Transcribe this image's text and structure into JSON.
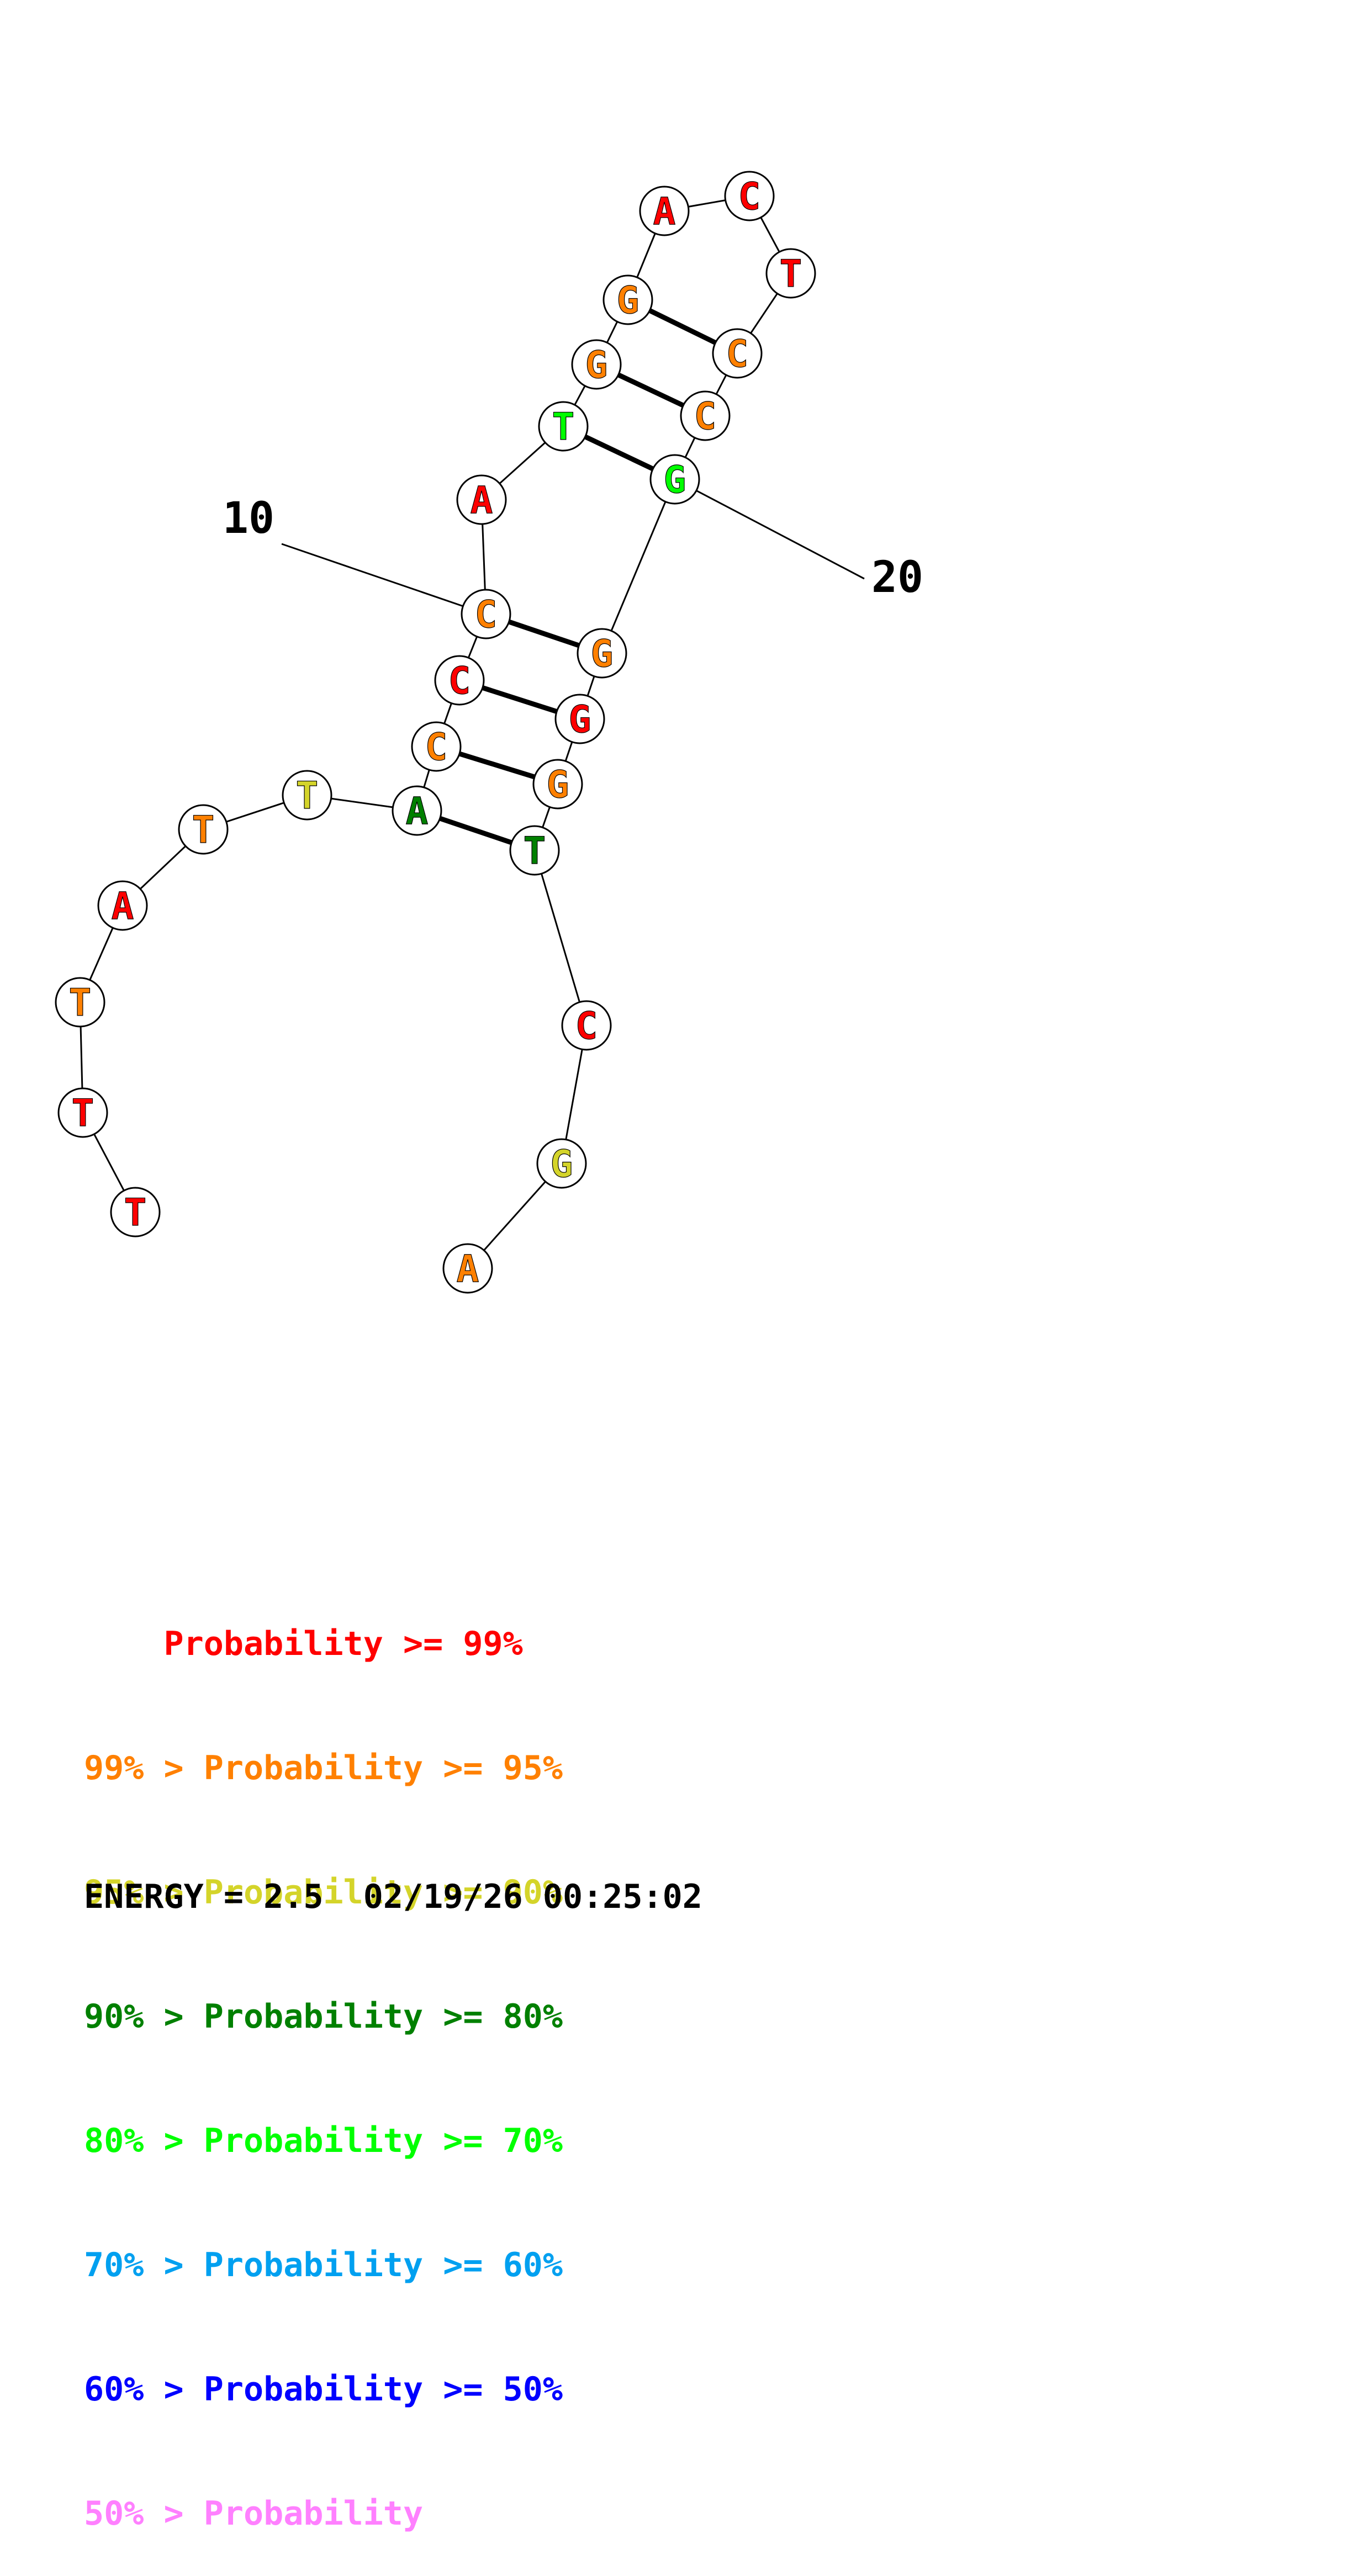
{
  "nucleotides": [
    {
      "idx": 1,
      "base": "T",
      "color": "#ff0000"
    },
    {
      "idx": 2,
      "base": "T",
      "color": "#ff0000"
    },
    {
      "idx": 3,
      "base": "T",
      "color": "#ff8000"
    },
    {
      "idx": 4,
      "base": "A",
      "color": "#ff0000"
    },
    {
      "idx": 5,
      "base": "T",
      "color": "#ff8000"
    },
    {
      "idx": 6,
      "base": "T",
      "color": "#d4d42a"
    },
    {
      "idx": 7,
      "base": "A",
      "color": "#008000"
    },
    {
      "idx": 8,
      "base": "C",
      "color": "#ff8000"
    },
    {
      "idx": 9,
      "base": "C",
      "color": "#ff0000"
    },
    {
      "idx": 10,
      "base": "C",
      "color": "#ff8000"
    },
    {
      "idx": 11,
      "base": "A",
      "color": "#ff0000"
    },
    {
      "idx": 12,
      "base": "T",
      "color": "#00ff00"
    },
    {
      "idx": 13,
      "base": "G",
      "color": "#ff8000"
    },
    {
      "idx": 14,
      "base": "G",
      "color": "#ff8000"
    },
    {
      "idx": 15,
      "base": "A",
      "color": "#ff0000"
    },
    {
      "idx": 16,
      "base": "C",
      "color": "#ff0000"
    },
    {
      "idx": 17,
      "base": "T",
      "color": "#ff0000"
    },
    {
      "idx": 18,
      "base": "C",
      "color": "#ff8000"
    },
    {
      "idx": 19,
      "base": "C",
      "color": "#ff8000"
    },
    {
      "idx": 20,
      "base": "G",
      "color": "#00ff00"
    },
    {
      "idx": 21,
      "base": "G",
      "color": "#ff8000"
    },
    {
      "idx": 22,
      "base": "G",
      "color": "#ff0000"
    },
    {
      "idx": 23,
      "base": "G",
      "color": "#ff8000"
    },
    {
      "idx": 24,
      "base": "T",
      "color": "#008000"
    },
    {
      "idx": 25,
      "base": "C",
      "color": "#ff0000"
    },
    {
      "idx": 26,
      "base": "G",
      "color": "#d4d42a"
    },
    {
      "idx": 27,
      "base": "A",
      "color": "#ff8000"
    }
  ],
  "pairs": [
    [
      7,
      24
    ],
    [
      8,
      23
    ],
    [
      9,
      22
    ],
    [
      10,
      21
    ],
    [
      12,
      20
    ],
    [
      13,
      19
    ],
    [
      14,
      18
    ]
  ],
  "number_labels": [
    {
      "text": "10",
      "idx": 10
    },
    {
      "text": "20",
      "idx": 20
    }
  ],
  "legend": [
    {
      "prefix": "    ",
      "text": "Probability >= 99%",
      "color": "#ff0000"
    },
    {
      "prefix": "99% > ",
      "text": "Probability >= 95%",
      "color": "#ff8000"
    },
    {
      "prefix": "95% > ",
      "text": "Probability >= 90%",
      "color": "#d4d42a"
    },
    {
      "prefix": "90% > ",
      "text": "Probability >= 80%",
      "color": "#008000"
    },
    {
      "prefix": "80% > ",
      "text": "Probability >= 70%",
      "color": "#00ff00"
    },
    {
      "prefix": "70% > ",
      "text": "Probability >= 60%",
      "color": "#00a0f0"
    },
    {
      "prefix": "60% > ",
      "text": "Probability >= 50%",
      "color": "#0000ff"
    },
    {
      "prefix": "50% > ",
      "text": "Probability",
      "color": "#ff80ff"
    }
  ],
  "energy_text": "ENERGY = 2.5  02/19/26 00:25:02"
}
